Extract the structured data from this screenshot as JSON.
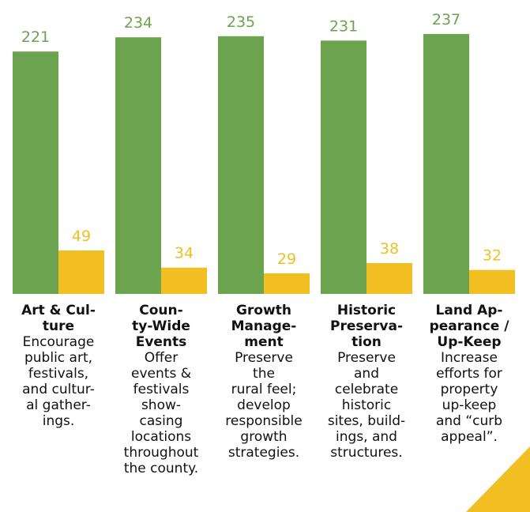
{
  "chart_data": {
    "type": "bar",
    "categories": [
      "Art & Cul-\nture",
      "Coun-\nty-Wide\nEvents",
      "Growth\nManage-\nment",
      "Historic\nPreserva-\ntion",
      "Land Ap-\npearance /\nUp-Keep"
    ],
    "descriptions": [
      "Encourage\npublic art,\nfestivals,\nand cultur-\nal gather-\nings.",
      "Offer\nevents &\nfestivals\nshow-\ncasing\nlocations\nthroughout\nthe county.",
      "Preserve\nthe\nrural feel;\ndevelop\nresponsible\ngrowth\nstrategies.",
      "Preserve\nand\ncelebrate\nhistoric\nsites, build-\nings, and\nstructures.",
      "Increase\nefforts for\nproperty\nup-keep\nand “curb\nappeal”."
    ],
    "series": [
      {
        "color": "#6ca34f",
        "values": [
          221,
          234,
          235,
          231,
          237
        ]
      },
      {
        "color": "#f2bf22",
        "values": [
          49,
          34,
          29,
          38,
          32
        ],
        "axis": "y2"
      }
    ],
    "ylim": [
      0,
      268
    ],
    "y2lim": [
      11,
      268
    ]
  }
}
